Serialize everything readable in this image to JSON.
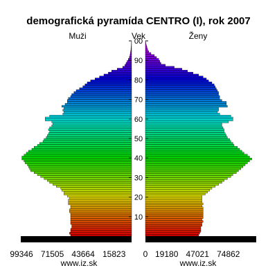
{
  "chart_data": {
    "type": "bar",
    "orientation": "horizontal-mirrored",
    "title": "demografická pyramída CENTRO (I), rok 2007",
    "left_label": "Muži",
    "center_label": "Vek",
    "right_label": "Ženy",
    "source_left": "www.iz.sk",
    "source_right": "www.iz.sk",
    "age_ticks": [
      10,
      20,
      30,
      40,
      50,
      60,
      70,
      80,
      90,
      100
    ],
    "age_tick_labels": [
      "10",
      "20",
      "30",
      "40",
      "50",
      "60",
      "70",
      "80",
      "90",
      "00"
    ],
    "left_ticks": [
      99346,
      71505,
      43664,
      15823
    ],
    "right_ticks": [
      0,
      19180,
      47021,
      74862
    ],
    "xlim_per_side": [
      0,
      100000
    ],
    "age_range": [
      0,
      100
    ],
    "series": [
      {
        "name": "Muži",
        "values": [
          55000,
          56000,
          55000,
          55000,
          54000,
          54000,
          55000,
          55000,
          55000,
          55000,
          55000,
          55000,
          56000,
          56000,
          55000,
          55000,
          57000,
          57000,
          57000,
          56000,
          58000,
          61000,
          61000,
          63000,
          64000,
          68000,
          71000,
          74000,
          76000,
          79000,
          82000,
          85000,
          88000,
          91000,
          92000,
          93000,
          94000,
          96000,
          97000,
          99000,
          99000,
          97000,
          95000,
          93000,
          90000,
          88000,
          85000,
          83000,
          80000,
          79000,
          77000,
          76000,
          75000,
          74000,
          75000,
          74000,
          72000,
          71000,
          72000,
          78000,
          78000,
          74000,
          62000,
          61000,
          62000,
          61000,
          63000,
          60000,
          58000,
          58000,
          57000,
          55000,
          54000,
          52000,
          50000,
          47000,
          44000,
          42000,
          40000,
          37000,
          33000,
          29000,
          25000,
          21000,
          18000,
          13000,
          8000,
          6000,
          5000,
          4000,
          3000,
          2000,
          1500,
          1200,
          900,
          600,
          400,
          300,
          200,
          100
        ],
        "color_scale": "rainbow-by-age"
      },
      {
        "name": "Ženy",
        "values": [
          48000,
          49000,
          50000,
          50000,
          50000,
          51000,
          51000,
          52000,
          51000,
          52000,
          52000,
          52000,
          52000,
          52000,
          52000,
          51000,
          52000,
          51000,
          51000,
          51000,
          51000,
          54000,
          56000,
          58000,
          60000,
          63000,
          66000,
          69000,
          71000,
          74000,
          77000,
          79000,
          82000,
          84000,
          86000,
          88000,
          90000,
          92000,
          94000,
          96000,
          94000,
          92000,
          89000,
          87000,
          85000,
          83000,
          80000,
          79000,
          77000,
          76000,
          74000,
          73000,
          72000,
          71000,
          71000,
          70000,
          69000,
          69000,
          75000,
          79000,
          79000,
          77000,
          67000,
          65000,
          66000,
          66000,
          74000,
          73000,
          73000,
          69000,
          67000,
          67000,
          66000,
          66000,
          65000,
          64000,
          63000,
          62000,
          60000,
          57000,
          55000,
          52000,
          48000,
          43000,
          38000,
          33000,
          26000,
          18000,
          14000,
          13000,
          12000,
          10000,
          8000,
          5000,
          3000,
          2000,
          1500,
          1000,
          500,
          300
        ],
        "color_scale": "rainbow-by-age"
      }
    ]
  }
}
